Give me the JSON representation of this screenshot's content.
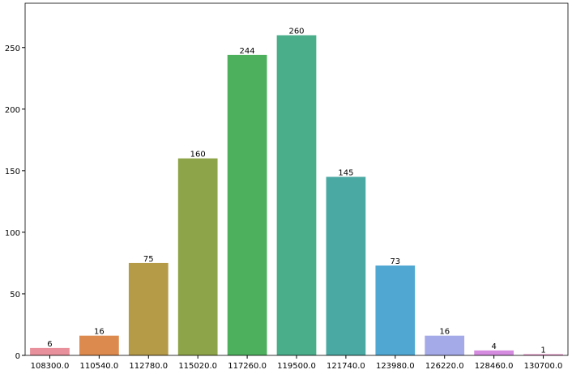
{
  "chart_data": {
    "type": "bar",
    "categories": [
      "108300.0",
      "110540.0",
      "112780.0",
      "115020.0",
      "117260.0",
      "119500.0",
      "121740.0",
      "123980.0",
      "126220.0",
      "128460.0",
      "130700.0"
    ],
    "values": [
      6,
      16,
      75,
      160,
      244,
      260,
      145,
      73,
      16,
      4,
      1
    ],
    "colors": [
      "#e8909b",
      "#dc8a4d",
      "#b59a48",
      "#8ea448",
      "#4cb05d",
      "#4aae8b",
      "#4aa9a3",
      "#50a8d2",
      "#a4a9e8",
      "#d58be0",
      "#e58fc6"
    ],
    "ylim": [
      0,
      286
    ],
    "yticks": [
      0,
      50,
      100,
      150,
      200,
      250
    ],
    "grid": false
  }
}
